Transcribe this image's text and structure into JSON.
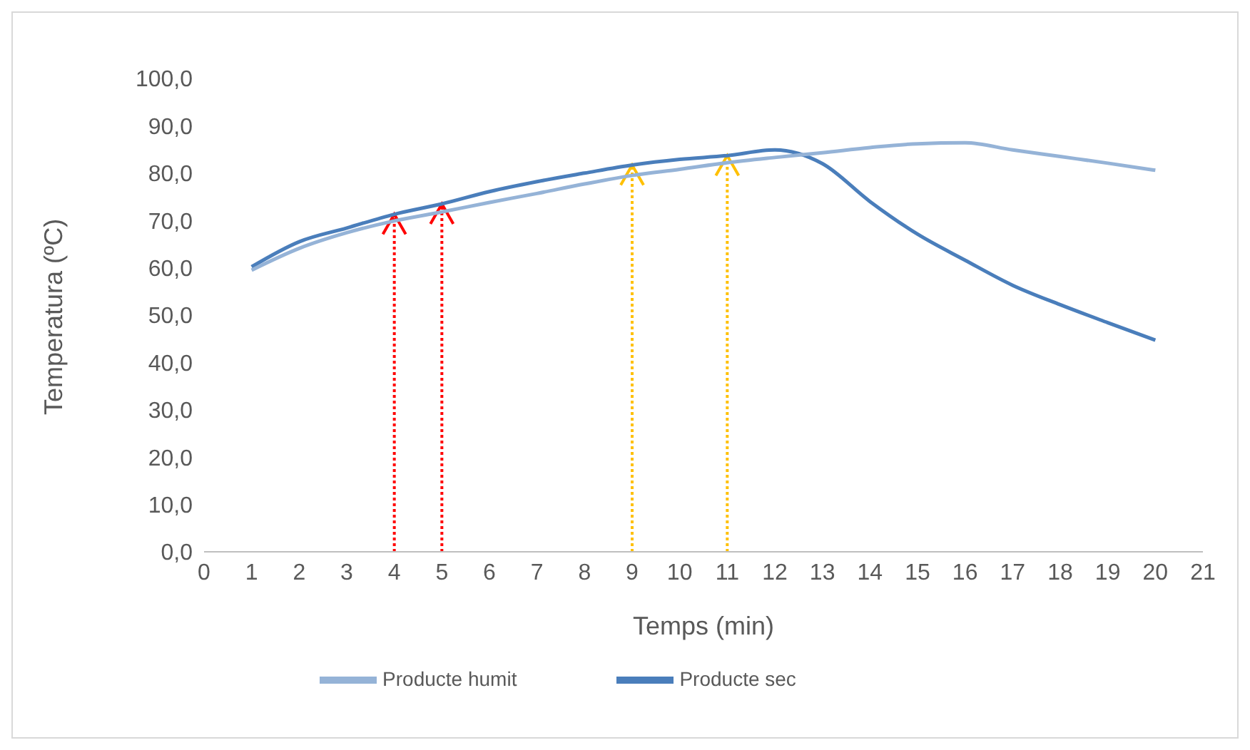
{
  "chart_data": {
    "type": "line",
    "xlabel": "Temps (min)",
    "ylabel": "Temperatura (ºC)",
    "x": [
      1,
      2,
      3,
      4,
      5,
      6,
      7,
      8,
      9,
      10,
      11,
      12,
      13,
      14,
      15,
      16,
      17,
      18,
      19,
      20
    ],
    "series": [
      {
        "name": "Producte sec",
        "color": "#4a7ebb",
        "values": [
          60.2,
          65.5,
          68.4,
          71.3,
          73.5,
          76.1,
          78.2,
          80.0,
          81.7,
          82.9,
          83.7,
          84.9,
          82.0,
          74.0,
          67.1,
          61.6,
          56.3,
          52.2,
          48.4,
          44.7
        ]
      },
      {
        "name": "Producte humit",
        "color": "#95b3d7",
        "values": [
          59.5,
          64.1,
          67.4,
          69.9,
          71.8,
          73.8,
          75.7,
          77.7,
          79.5,
          80.8,
          82.2,
          83.3,
          84.3,
          85.4,
          86.2,
          86.4,
          84.9,
          83.5,
          82.1,
          80.6
        ]
      }
    ],
    "xlim": [
      0,
      21
    ],
    "xticks": [
      0,
      1,
      2,
      3,
      4,
      5,
      6,
      7,
      8,
      9,
      10,
      11,
      12,
      13,
      14,
      15,
      16,
      17,
      18,
      19,
      20,
      21
    ],
    "ylim": [
      0,
      100
    ],
    "yticks": [
      {
        "value": 0,
        "label": "0,0"
      },
      {
        "value": 10,
        "label": "10,0"
      },
      {
        "value": 20,
        "label": "20,0"
      },
      {
        "value": 30,
        "label": "30,0"
      },
      {
        "value": 40,
        "label": "40,0"
      },
      {
        "value": 50,
        "label": "50,0"
      },
      {
        "value": 60,
        "label": "60,0"
      },
      {
        "value": 70,
        "label": "70,0"
      },
      {
        "value": 80,
        "label": "80,0"
      },
      {
        "value": 90,
        "label": "90,0"
      },
      {
        "value": 100,
        "label": "100,0"
      }
    ],
    "ref_lines": [
      {
        "axis": "x",
        "value": 4,
        "color": "#ff0000",
        "line_style": "dotted"
      },
      {
        "axis": "x",
        "value": 5,
        "color": "#ff0000",
        "line_style": "dotted"
      },
      {
        "axis": "x",
        "value": 9,
        "color": "#ffc000",
        "line_style": "dotted"
      },
      {
        "axis": "x",
        "value": 11,
        "color": "#ffc000",
        "line_style": "dotted"
      }
    ],
    "grid": false,
    "legend": "bottom",
    "marker": "none",
    "line_style": "solid"
  }
}
